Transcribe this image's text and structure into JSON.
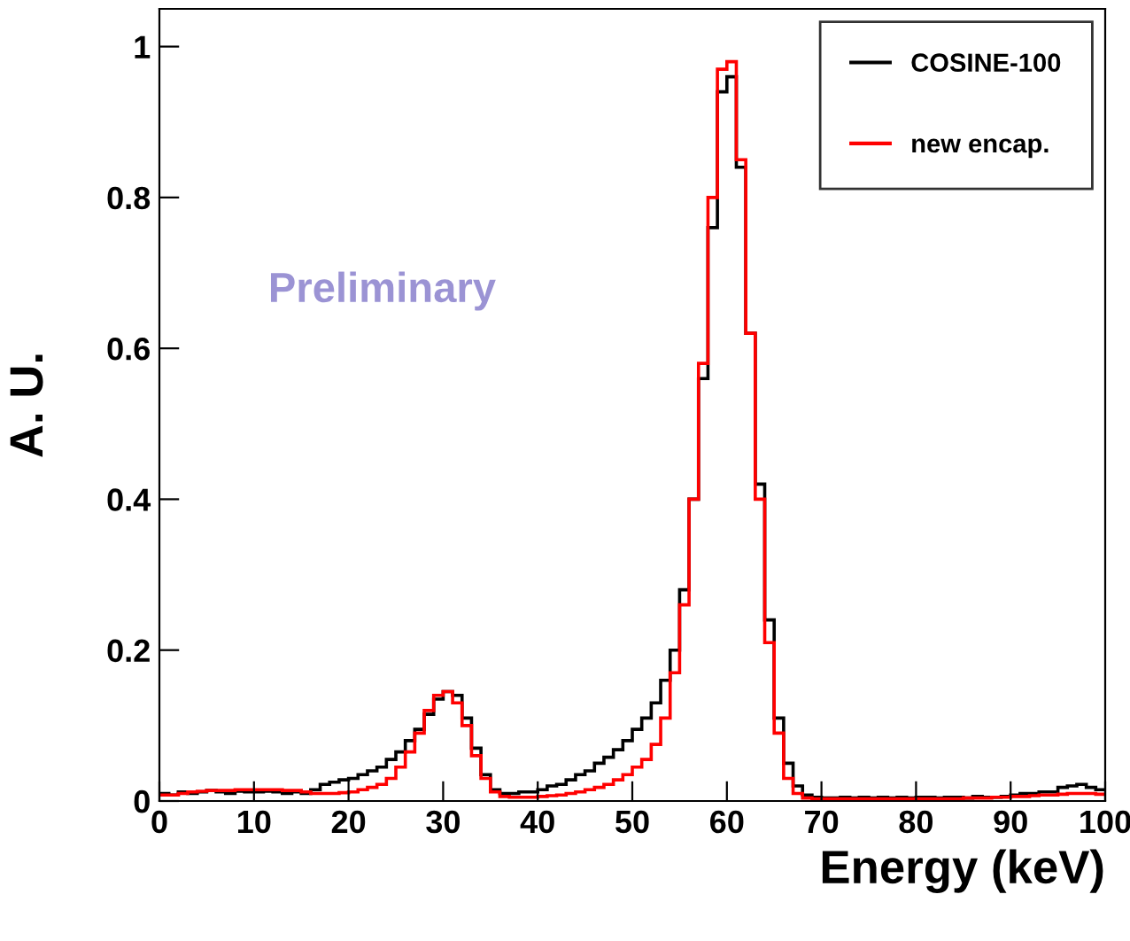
{
  "chart_data": {
    "type": "histogram",
    "xlabel": "Energy (keV)",
    "ylabel": "A. U.",
    "annotations": [
      "Preliminary"
    ],
    "bins": [
      0,
      1,
      2,
      3,
      4,
      5,
      6,
      7,
      8,
      9,
      10,
      11,
      12,
      13,
      14,
      15,
      16,
      17,
      18,
      19,
      20,
      21,
      22,
      23,
      24,
      25,
      26,
      27,
      28,
      29,
      30,
      31,
      32,
      33,
      34,
      35,
      36,
      37,
      38,
      39,
      40,
      41,
      42,
      43,
      44,
      45,
      46,
      47,
      48,
      49,
      50,
      51,
      52,
      53,
      54,
      55,
      56,
      57,
      58,
      59,
      60,
      61,
      62,
      63,
      64,
      65,
      66,
      67,
      68,
      69,
      70,
      71,
      72,
      73,
      74,
      75,
      76,
      77,
      78,
      79,
      80,
      81,
      82,
      83,
      84,
      85,
      86,
      87,
      88,
      89,
      90,
      91,
      92,
      93,
      94,
      95,
      96,
      97,
      98,
      99,
      100
    ],
    "series": [
      {
        "name": "COSINE-100",
        "color": "#000000",
        "values": [
          0.01,
          0.008,
          0.012,
          0.01,
          0.012,
          0.014,
          0.012,
          0.01,
          0.013,
          0.012,
          0.012,
          0.013,
          0.012,
          0.01,
          0.012,
          0.01,
          0.015,
          0.022,
          0.025,
          0.028,
          0.03,
          0.035,
          0.04,
          0.045,
          0.055,
          0.065,
          0.08,
          0.095,
          0.115,
          0.135,
          0.145,
          0.14,
          0.11,
          0.07,
          0.035,
          0.015,
          0.01,
          0.01,
          0.012,
          0.012,
          0.015,
          0.02,
          0.022,
          0.028,
          0.035,
          0.04,
          0.05,
          0.058,
          0.068,
          0.08,
          0.095,
          0.11,
          0.13,
          0.16,
          0.2,
          0.28,
          0.4,
          0.56,
          0.76,
          0.94,
          0.96,
          0.84,
          0.62,
          0.42,
          0.24,
          0.11,
          0.05,
          0.02,
          0.008,
          0.005,
          0.004,
          0.004,
          0.005,
          0.004,
          0.005,
          0.004,
          0.005,
          0.004,
          0.005,
          0.004,
          0.005,
          0.005,
          0.004,
          0.005,
          0.005,
          0.004,
          0.006,
          0.005,
          0.005,
          0.006,
          0.008,
          0.01,
          0.01,
          0.012,
          0.012,
          0.018,
          0.02,
          0.022,
          0.018,
          0.015
        ]
      },
      {
        "name": "new encap.",
        "color": "#ff0000",
        "values": [
          0.008,
          0.008,
          0.01,
          0.012,
          0.013,
          0.014,
          0.014,
          0.014,
          0.015,
          0.015,
          0.015,
          0.015,
          0.015,
          0.014,
          0.014,
          0.012,
          0.01,
          0.01,
          0.01,
          0.011,
          0.012,
          0.015,
          0.018,
          0.022,
          0.03,
          0.045,
          0.065,
          0.09,
          0.12,
          0.14,
          0.145,
          0.13,
          0.1,
          0.06,
          0.03,
          0.012,
          0.006,
          0.005,
          0.005,
          0.005,
          0.006,
          0.007,
          0.008,
          0.01,
          0.012,
          0.015,
          0.018,
          0.022,
          0.028,
          0.035,
          0.045,
          0.055,
          0.075,
          0.11,
          0.17,
          0.26,
          0.4,
          0.58,
          0.8,
          0.97,
          0.98,
          0.85,
          0.62,
          0.4,
          0.21,
          0.09,
          0.03,
          0.01,
          0.004,
          0.003,
          0.003,
          0.003,
          0.003,
          0.003,
          0.003,
          0.003,
          0.003,
          0.003,
          0.003,
          0.003,
          0.003,
          0.003,
          0.003,
          0.003,
          0.003,
          0.004,
          0.004,
          0.004,
          0.005,
          0.005,
          0.006,
          0.006,
          0.007,
          0.008,
          0.008,
          0.009,
          0.01,
          0.01,
          0.01,
          0.009
        ]
      }
    ],
    "xlim": [
      0,
      100
    ],
    "xticks": [
      0,
      10,
      20,
      30,
      40,
      50,
      60,
      70,
      80,
      90,
      100
    ],
    "ylim": [
      0,
      1.05
    ],
    "yticks": [
      0,
      0.2,
      0.4,
      0.6,
      0.8,
      1
    ],
    "legend": "top right"
  }
}
